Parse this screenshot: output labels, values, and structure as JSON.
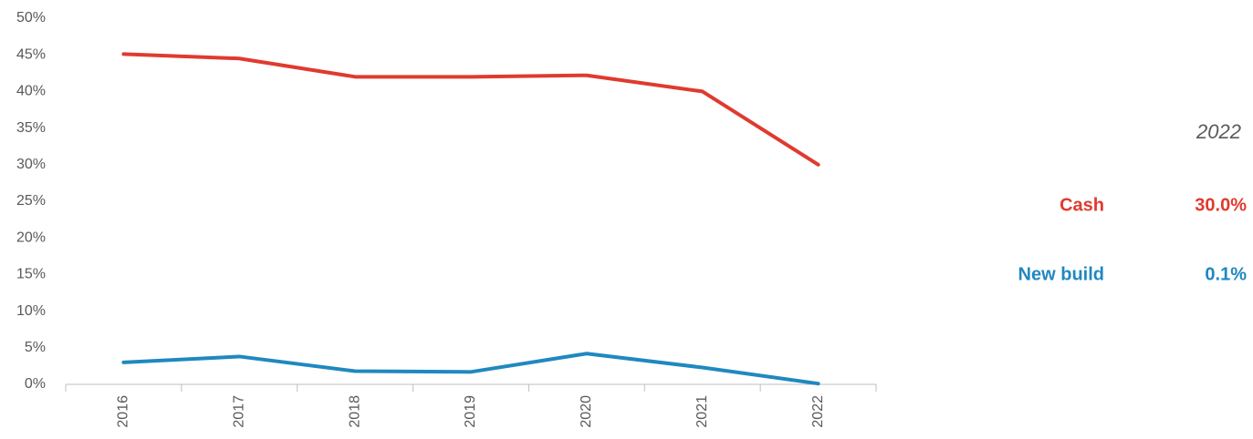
{
  "chart_data": {
    "type": "line",
    "categories": [
      "2016",
      "2017",
      "2018",
      "2019",
      "2020",
      "2021",
      "2022"
    ],
    "series": [
      {
        "name": "Cash",
        "color": "#e03a2f",
        "values": [
          45.1,
          44.5,
          42.0,
          42.0,
          42.2,
          40.0,
          30.0
        ],
        "value_labels": [
          null,
          null,
          null,
          null,
          null,
          null,
          "30.0%"
        ]
      },
      {
        "name": "New build",
        "color": "#1f88c0",
        "values": [
          3.0,
          3.8,
          1.8,
          1.7,
          4.2,
          2.3,
          0.1
        ],
        "value_labels": [
          null,
          null,
          null,
          null,
          null,
          null,
          "0.1%"
        ]
      }
    ],
    "ylim": [
      0,
      50
    ],
    "yticks": [
      {
        "value": 0,
        "label": "0%"
      },
      {
        "value": 5,
        "label": "5%"
      },
      {
        "value": 10,
        "label": "10%"
      },
      {
        "value": 15,
        "label": "15%"
      },
      {
        "value": 20,
        "label": "20%"
      },
      {
        "value": 25,
        "label": "25%"
      },
      {
        "value": 30,
        "label": "30%"
      },
      {
        "value": 35,
        "label": "35%"
      },
      {
        "value": 40,
        "label": "40%"
      },
      {
        "value": 45,
        "label": "45%"
      },
      {
        "value": 50,
        "label": "50%"
      }
    ],
    "grid": false
  }
}
